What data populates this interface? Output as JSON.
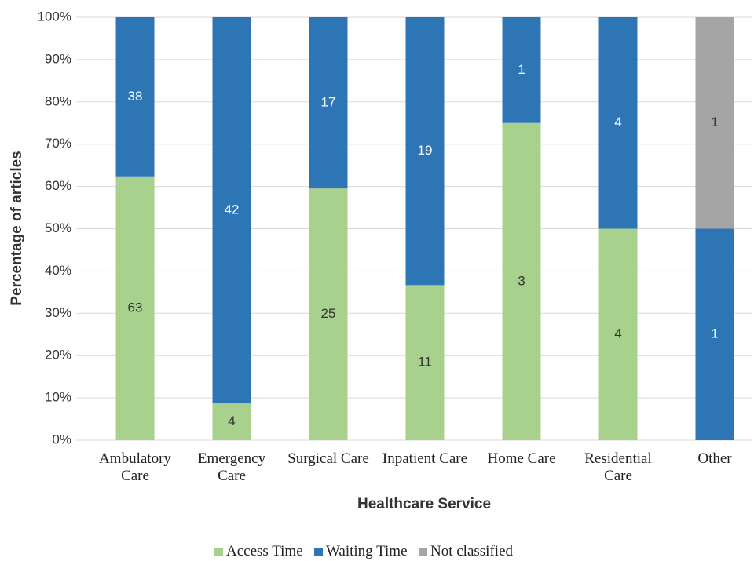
{
  "chart_data": {
    "type": "bar",
    "stack": "percent",
    "x_label": "Healthcare Service",
    "y_label": "Percentage of articles",
    "categories": [
      "Ambulatory Care",
      "Emergency Care",
      "Surgical Care",
      "Inpatient Care",
      "Home Care",
      "Residential Care",
      "Other"
    ],
    "series": [
      {
        "name": "Access Time",
        "color": "#a9d18e",
        "label_color": "#333333",
        "values": [
          63,
          4,
          25,
          11,
          3,
          4,
          null
        ]
      },
      {
        "name": "Waiting Time",
        "color": "#2e75b6",
        "label_color": "#ffffff",
        "values": [
          38,
          42,
          17,
          19,
          1,
          4,
          1
        ]
      },
      {
        "name": "Not classified",
        "color": "#a5a5a5",
        "label_color": "#333333",
        "values": [
          null,
          null,
          null,
          null,
          null,
          null,
          1
        ]
      }
    ],
    "ylim": [
      0,
      100
    ],
    "yticks": [
      {
        "value": 0,
        "label": "0%"
      },
      {
        "value": 10,
        "label": "10%"
      },
      {
        "value": 20,
        "label": "20%"
      },
      {
        "value": 30,
        "label": "30%"
      },
      {
        "value": 40,
        "label": "40%"
      },
      {
        "value": 50,
        "label": "50%"
      },
      {
        "value": 60,
        "label": "60%"
      },
      {
        "value": 70,
        "label": "70%"
      },
      {
        "value": 80,
        "label": "80%"
      },
      {
        "value": 90,
        "label": "90%"
      },
      {
        "value": 100,
        "label": "100%"
      }
    ],
    "grid": true,
    "legend": "bottom"
  }
}
